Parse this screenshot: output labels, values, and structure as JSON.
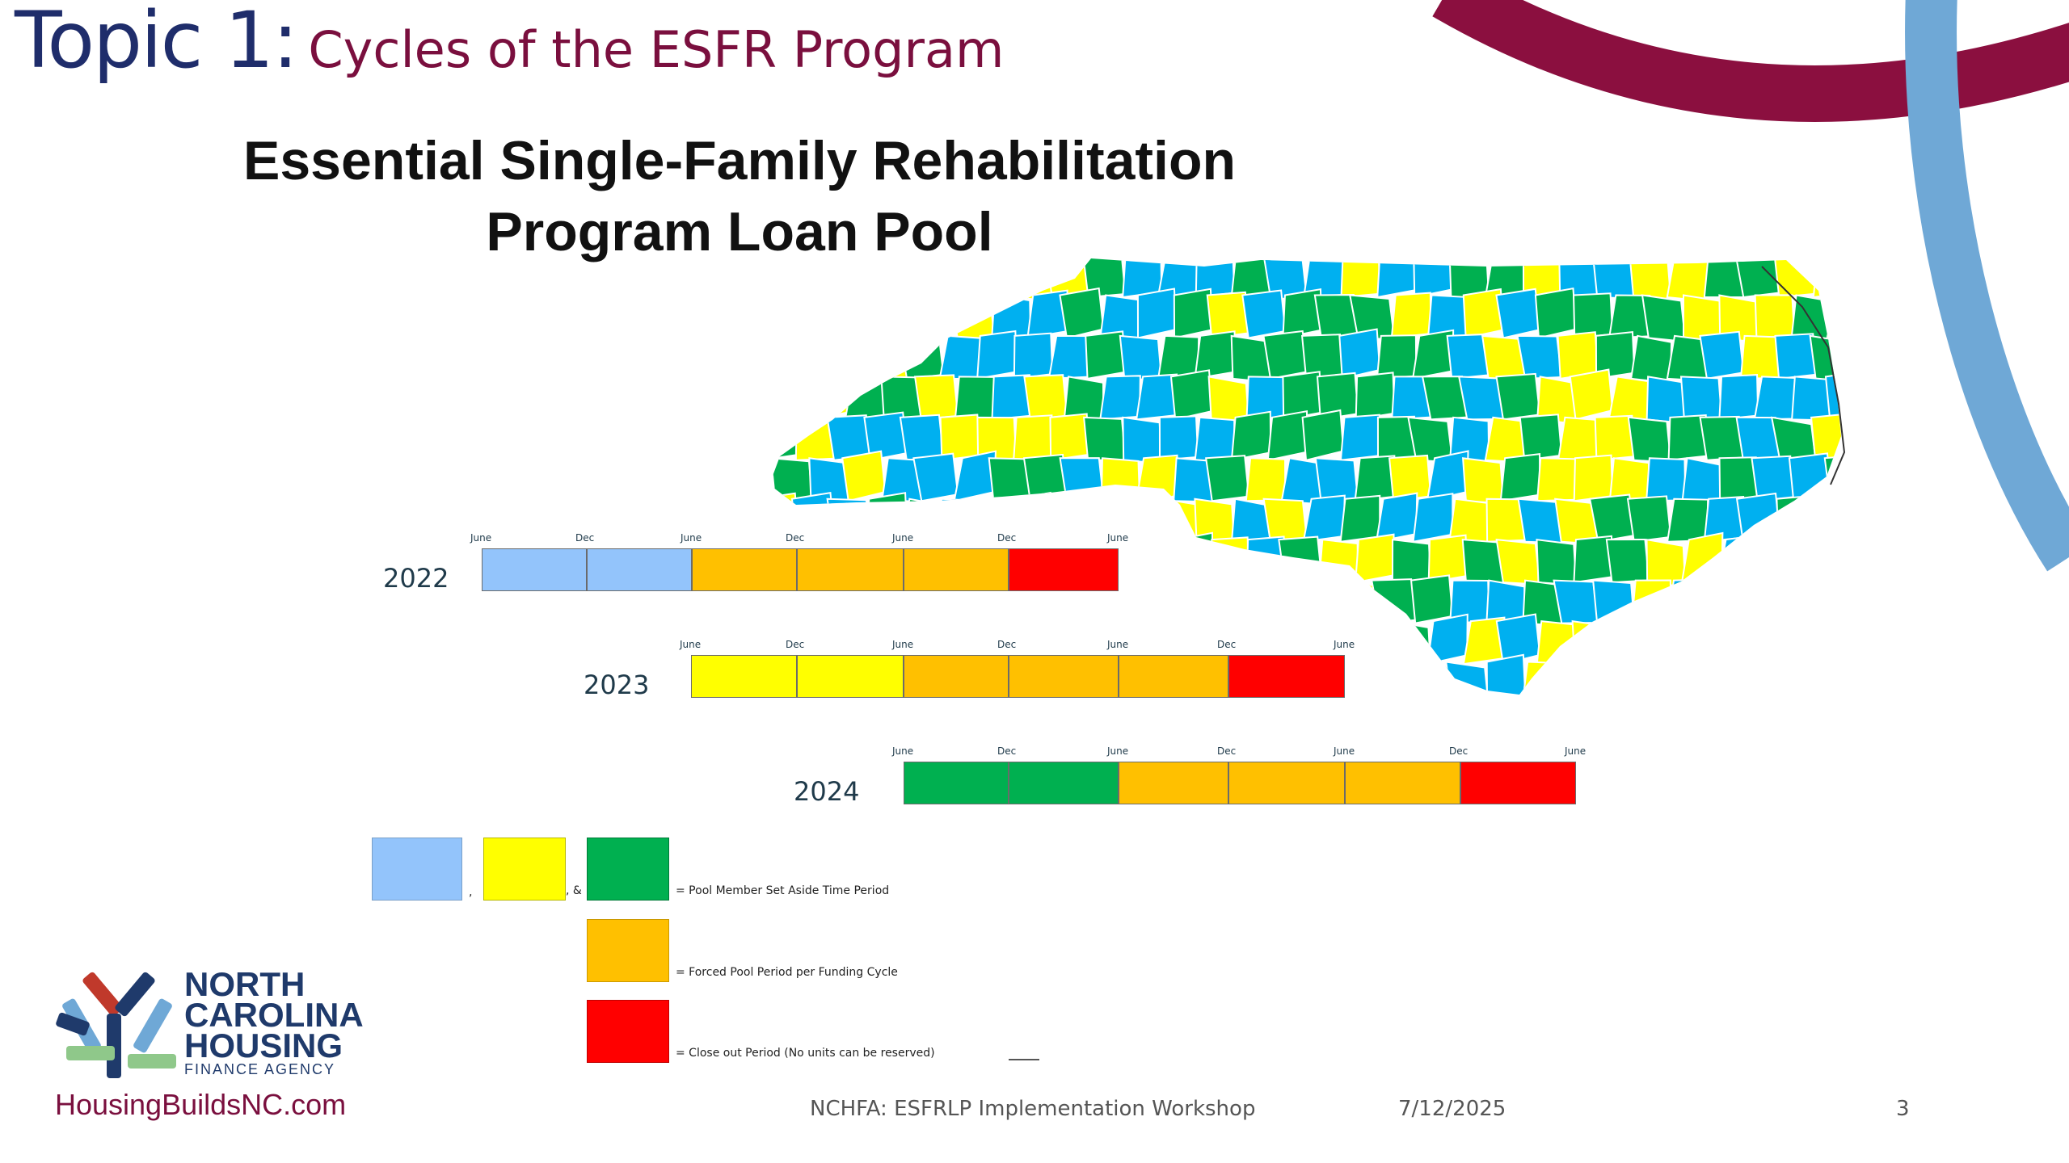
{
  "slide": {
    "topic_label": "Topic 1:",
    "topic_subtitle": "Cycles of the ESFR Program",
    "program_title_line1": "Essential Single-Family Rehabilitation",
    "program_title_line2": "Program Loan Pool"
  },
  "colors": {
    "blue": "#93c4fb",
    "yellow": "#ffff00",
    "green": "#00b050",
    "orange": "#ffc000",
    "red": "#ff0000",
    "map_blue": "#00b0f0",
    "map_green": "#00b050",
    "map_yellow": "#ffff00",
    "arc_maroon": "#8b0f3f",
    "arc_blue": "#6fa8d6"
  },
  "timeline": {
    "rows": [
      {
        "year": "2022",
        "ticks": [
          "June",
          "Dec",
          "June",
          "Dec",
          "June",
          "Dec",
          "June"
        ],
        "segments": [
          "blue",
          "blue",
          "orange",
          "orange",
          "orange",
          "red"
        ]
      },
      {
        "year": "2023",
        "ticks": [
          "June",
          "Dec",
          "June",
          "Dec",
          "June",
          "Dec",
          "June"
        ],
        "segments": [
          "yellow",
          "yellow",
          "orange",
          "orange",
          "orange",
          "red"
        ]
      },
      {
        "year": "2024",
        "ticks": [
          "June",
          "Dec",
          "June",
          "Dec",
          "June",
          "Dec",
          "June"
        ],
        "segments": [
          "green",
          "green",
          "orange",
          "orange",
          "orange",
          "red"
        ]
      }
    ]
  },
  "legend": {
    "separator_comma": ",",
    "separator_amp": ", &",
    "pool_member": "=  Pool Member Set Aside Time Period",
    "forced_pool": "=  Forced Pool Period per Funding Cycle",
    "close_out": "=  Close out Period (No units can be reserved)"
  },
  "logo": {
    "line1": "NORTH",
    "line2": "CAROLINA",
    "line3": "HOUSING",
    "line4": "FINANCE AGENCY",
    "url": "HousingBuildsNC.com"
  },
  "footer": {
    "event": "NCHFA: ESFRLP Implementation Workshop",
    "date": "7/12/2025",
    "page": "3"
  }
}
